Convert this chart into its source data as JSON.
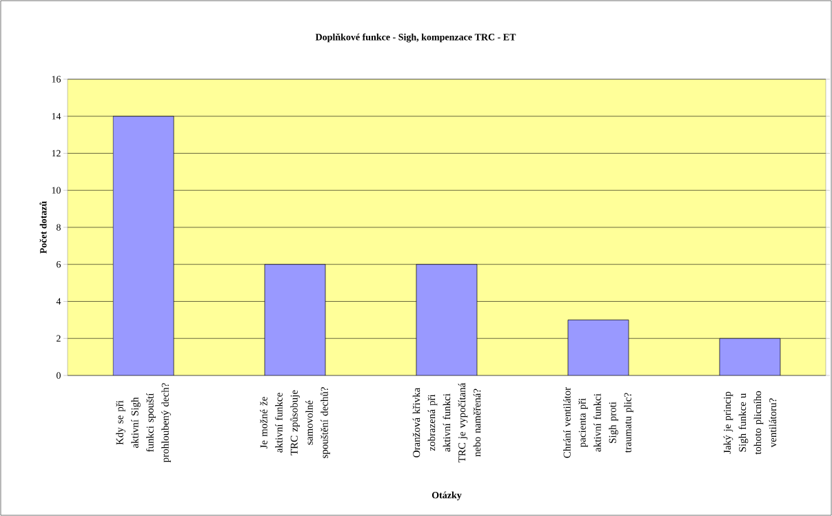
{
  "chart_data": {
    "type": "bar",
    "title": "Doplňkové funkce - Sigh, kompenzace TRC - ET",
    "xlabel": "Otázky",
    "ylabel": "Počet dotazů",
    "categories": [
      "Kdy se při aktivní Sigh funkci spouští prohloubený dech?",
      "Je možné že aktivní funkce TRC způsobuje samovolné spouštění dechů?",
      "Oranžová křivka zobrazená při aktivní funkci TRC je vypočítaná nebo naměřená?",
      "Chrání ventilátor pacienta při aktivní funkci Sigh proti traumatu plic?",
      "Jaký je princip Sigh funkce u tohoto plicního ventilátoru?"
    ],
    "values": [
      14,
      6,
      6,
      3,
      2
    ],
    "color": "#9999ff",
    "ylim": [
      0,
      16
    ],
    "yticks": [
      0,
      2,
      4,
      6,
      8,
      10,
      12,
      14,
      16
    ],
    "grid": "y"
  }
}
